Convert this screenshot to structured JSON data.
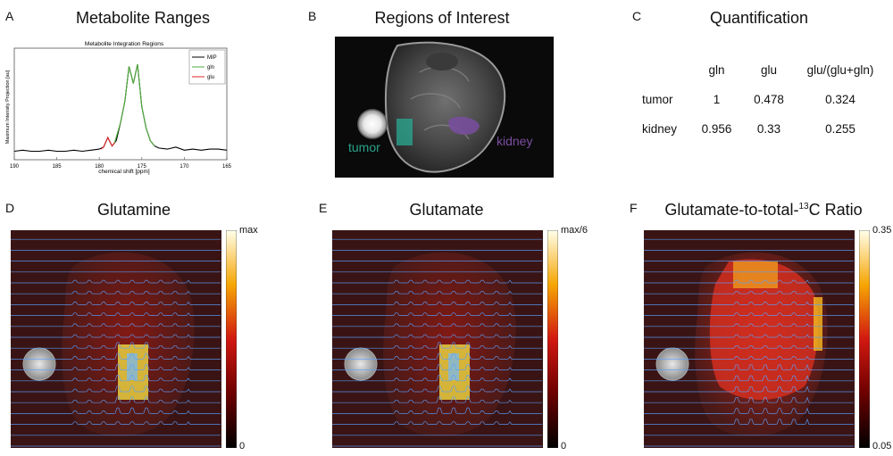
{
  "panels": {
    "A": {
      "letter": "A",
      "title": "Metabolite Ranges",
      "inner_title": "Metabolite Integration Regions",
      "ylabel": "Maximum Intensity Projection [au]",
      "xlabel": "chemical shift  [ppm]",
      "legend": [
        "MIP",
        "gln",
        "glu"
      ],
      "colors": {
        "MIP": "#000000",
        "gln": "#4fae3c",
        "glu": "#e0262a"
      }
    },
    "B": {
      "letter": "B",
      "title": "Regions of Interest",
      "labels": {
        "tumor": "tumor",
        "kidney": "kidney"
      },
      "colors": {
        "tumor": "#2aa38c",
        "kidney": "#7a4ea0"
      }
    },
    "C": {
      "letter": "C",
      "title": "Quantification",
      "columns": [
        "gln",
        "glu",
        "glu/(glu+gln)"
      ],
      "rows": [
        {
          "name": "tumor",
          "values": [
            "1",
            "0.478",
            "0.324"
          ]
        },
        {
          "name": "kidney",
          "values": [
            "0.956",
            "0.33",
            "0.255"
          ]
        }
      ]
    },
    "D": {
      "letter": "D",
      "title": "Glutamine",
      "cbar_max": "max",
      "cbar_min": "0"
    },
    "E": {
      "letter": "E",
      "title": "Glutamate",
      "cbar_max": "max/6",
      "cbar_min": "0"
    },
    "F": {
      "letter": "F",
      "title_main": "Glutamate-to-total-",
      "title_sup": "13",
      "title_end": "C Ratio",
      "cbar_max": "0.35",
      "cbar_min": "0.05"
    }
  },
  "chart_data": {
    "type": "line",
    "title": "Metabolite Integration Regions",
    "xlabel": "chemical shift  [ppm]",
    "ylabel": "Maximum Intensity Projection [au]",
    "xlim": [
      190,
      165
    ],
    "x_ticks": [
      190,
      185,
      180,
      175,
      170,
      165
    ],
    "series": [
      {
        "name": "MIP",
        "x": [
          190,
          189,
          188,
          187,
          186,
          185,
          184,
          183,
          182,
          181,
          180,
          179.5,
          179,
          178.5,
          178,
          177.5,
          177,
          176.5,
          176,
          175.5,
          175,
          174.5,
          174,
          173.5,
          173,
          172,
          171,
          170,
          169,
          168,
          167,
          166,
          165
        ],
        "y": [
          0.08,
          0.09,
          0.08,
          0.08,
          0.09,
          0.08,
          0.08,
          0.09,
          0.08,
          0.09,
          0.1,
          0.12,
          0.21,
          0.13,
          0.18,
          0.35,
          0.55,
          0.88,
          0.72,
          0.9,
          0.5,
          0.3,
          0.18,
          0.13,
          0.11,
          0.1,
          0.12,
          0.09,
          0.1,
          0.09,
          0.1,
          0.1,
          0.09
        ]
      },
      {
        "name": "gln",
        "x": [
          178.2,
          177.5,
          177,
          176.5,
          176,
          175.5,
          175,
          174.5,
          174,
          173.5
        ],
        "y": [
          0.16,
          0.35,
          0.55,
          0.88,
          0.72,
          0.9,
          0.5,
          0.3,
          0.18,
          0.13
        ]
      },
      {
        "name": "glu",
        "x": [
          179.8,
          179.5,
          179,
          178.5,
          178.2
        ],
        "y": [
          0.1,
          0.12,
          0.21,
          0.13,
          0.16
        ]
      }
    ]
  }
}
